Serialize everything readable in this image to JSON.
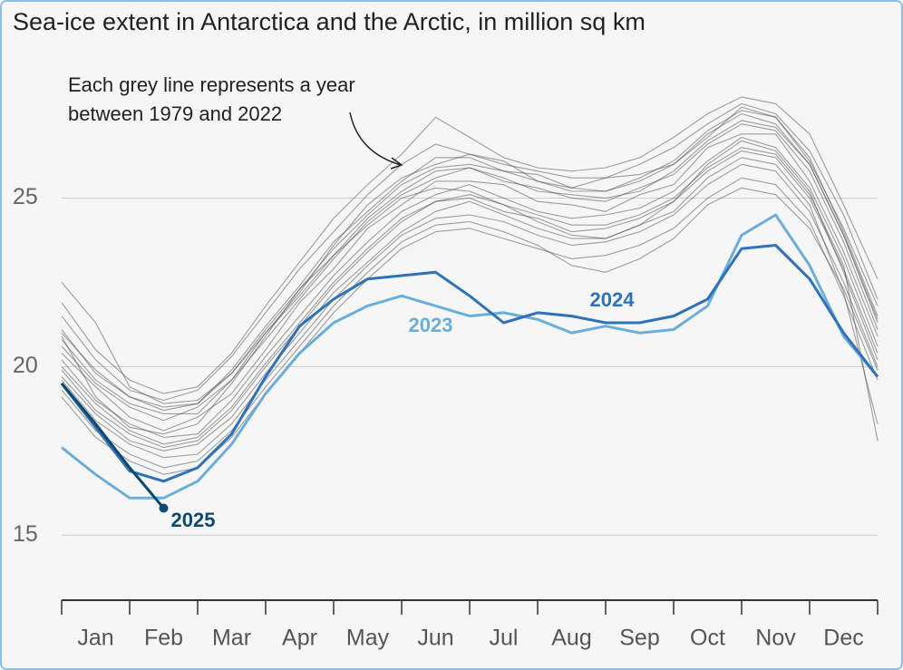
{
  "chart_data": {
    "type": "line",
    "title": "Sea-ice extent in Antarctica and the Arctic, in million sq km",
    "annotations": [
      "Each grey line represents a year",
      "between 1979 and 2022"
    ],
    "x": [
      0,
      0.5,
      1,
      1.5,
      2,
      2.5,
      3,
      3.5,
      4,
      4.5,
      5,
      5.5,
      6,
      6.5,
      7,
      7.5,
      8,
      8.5,
      9,
      9.5,
      10,
      10.5,
      11,
      11.5,
      12
    ],
    "xlim": [
      0,
      12
    ],
    "xticks": [
      {
        "value": 0.5,
        "label": "Jan"
      },
      {
        "value": 1.5,
        "label": "Feb"
      },
      {
        "value": 2.5,
        "label": "Mar"
      },
      {
        "value": 3.5,
        "label": "Apr"
      },
      {
        "value": 4.5,
        "label": "May"
      },
      {
        "value": 5.5,
        "label": "Jun"
      },
      {
        "value": 6.5,
        "label": "Jul"
      },
      {
        "value": 7.5,
        "label": "Aug"
      },
      {
        "value": 8.5,
        "label": "Sep"
      },
      {
        "value": 9.5,
        "label": "Oct"
      },
      {
        "value": 10.5,
        "label": "Nov"
      },
      {
        "value": 11.5,
        "label": "Dec"
      }
    ],
    "ylim": [
      13.07,
      29.8
    ],
    "yticks": [
      15,
      20,
      25
    ],
    "grid": true,
    "series": [
      {
        "color": "#444",
        "values": [
          21.5,
          20.2,
          19.3,
          19.0,
          19.3,
          20.3,
          21.6,
          22.9,
          24.0,
          25.1,
          26.0,
          26.6,
          26.3,
          26.0,
          25.8,
          25.6,
          25.6,
          26.0,
          26.5,
          27.2,
          27.8,
          27.5,
          26.4,
          24.5,
          22.0
        ]
      },
      {
        "color": "#444",
        "values": [
          21.0,
          19.9,
          19.1,
          18.8,
          18.9,
          19.9,
          21.2,
          22.4,
          23.7,
          24.6,
          25.5,
          26.2,
          26.2,
          25.8,
          25.7,
          25.3,
          25.2,
          25.6,
          26.1,
          27.0,
          27.6,
          27.4,
          26.2,
          24.0,
          21.5
        ]
      },
      {
        "color": "#444",
        "values": [
          20.8,
          19.6,
          18.9,
          18.6,
          18.6,
          19.6,
          21.0,
          22.1,
          23.3,
          24.4,
          25.2,
          25.8,
          25.9,
          25.6,
          25.2,
          25.1,
          25.0,
          25.2,
          25.8,
          26.7,
          27.3,
          27.1,
          26.0,
          23.9,
          21.3
        ]
      },
      {
        "color": "#444",
        "values": [
          20.4,
          19.4,
          18.5,
          18.1,
          18.5,
          19.2,
          20.5,
          21.9,
          22.9,
          24.1,
          24.8,
          25.5,
          25.5,
          25.4,
          24.9,
          24.8,
          24.6,
          25.1,
          25.4,
          26.5,
          26.9,
          26.9,
          25.5,
          23.4,
          20.9
        ]
      },
      {
        "color": "#444",
        "values": [
          20.2,
          19.0,
          18.3,
          17.9,
          18.0,
          19.0,
          20.3,
          21.5,
          22.7,
          23.7,
          24.6,
          25.1,
          25.4,
          25.0,
          24.6,
          24.4,
          24.5,
          24.7,
          25.2,
          26.1,
          26.8,
          26.5,
          25.3,
          23.2,
          20.6
        ]
      },
      {
        "color": "#444",
        "values": [
          19.9,
          18.7,
          18.0,
          17.6,
          17.8,
          18.7,
          20.0,
          21.2,
          22.4,
          23.4,
          24.3,
          24.9,
          25.0,
          24.6,
          24.4,
          24.0,
          24.1,
          24.4,
          24.9,
          25.8,
          26.4,
          26.2,
          25.0,
          22.9,
          20.4
        ]
      },
      {
        "color": "#444",
        "values": [
          19.6,
          18.4,
          17.7,
          17.3,
          17.4,
          18.3,
          19.6,
          20.8,
          22.0,
          23.0,
          23.9,
          24.4,
          24.5,
          24.3,
          23.9,
          23.6,
          23.7,
          24.0,
          24.5,
          25.4,
          26.0,
          25.8,
          24.6,
          22.5,
          20.0
        ]
      },
      {
        "color": "#444",
        "values": [
          19.1,
          17.9,
          17.2,
          16.8,
          17.0,
          17.9,
          19.2,
          20.4,
          21.6,
          22.6,
          23.5,
          24.0,
          24.1,
          23.8,
          23.5,
          23.2,
          23.3,
          23.6,
          24.1,
          25.0,
          25.6,
          25.4,
          24.3,
          22.1,
          19.6
        ]
      },
      {
        "color": "#444",
        "values": [
          21.9,
          20.5,
          19.6,
          19.2,
          19.4,
          20.4,
          21.8,
          23.1,
          24.4,
          25.4,
          26.3,
          27.4,
          26.8,
          26.2,
          25.9,
          25.8,
          25.9,
          26.2,
          26.8,
          27.5,
          28.0,
          27.8,
          26.9,
          24.8,
          22.6
        ]
      },
      {
        "color": "#444",
        "values": [
          22.5,
          21.3,
          19.4,
          18.9,
          19.0,
          19.8,
          21.0,
          22.2,
          23.6,
          24.8,
          25.6,
          26.0,
          26.3,
          26.1,
          25.5,
          25.3,
          25.6,
          25.7,
          26.0,
          26.8,
          27.7,
          27.4,
          26.1,
          24.1,
          21.8
        ]
      },
      {
        "color": "#444",
        "values": [
          20.9,
          19.1,
          18.2,
          18.0,
          18.3,
          19.5,
          20.9,
          22.3,
          23.3,
          24.2,
          25.0,
          25.3,
          25.2,
          24.8,
          24.3,
          23.9,
          23.8,
          24.2,
          24.9,
          26.0,
          26.7,
          26.4,
          25.2,
          22.8,
          20.2
        ]
      },
      {
        "color": "#444",
        "values": [
          19.7,
          18.6,
          17.8,
          17.5,
          17.7,
          18.5,
          19.8,
          21.0,
          22.2,
          23.1,
          24.0,
          24.6,
          24.9,
          24.5,
          24.1,
          23.8,
          23.8,
          24.2,
          24.6,
          25.6,
          26.2,
          26.0,
          24.8,
          22.2,
          18.3
        ]
      },
      {
        "color": "#444",
        "values": [
          20.6,
          19.5,
          18.8,
          18.4,
          18.8,
          19.6,
          20.8,
          22.0,
          23.2,
          24.3,
          25.1,
          25.6,
          25.9,
          25.5,
          25.3,
          25.0,
          24.9,
          25.3,
          25.7,
          26.6,
          27.2,
          27.0,
          25.8,
          23.7,
          21.1
        ]
      },
      {
        "color": "#444",
        "values": [
          20.0,
          18.9,
          18.1,
          17.7,
          17.9,
          18.8,
          20.1,
          21.3,
          22.5,
          23.5,
          24.4,
          24.9,
          25.1,
          24.8,
          24.5,
          24.2,
          24.2,
          24.5,
          25.0,
          25.9,
          26.5,
          26.3,
          25.1,
          23.0,
          17.8
        ]
      },
      {
        "color": "#444",
        "values": [
          21.1,
          19.8,
          19.1,
          18.7,
          18.9,
          19.8,
          21.1,
          22.3,
          23.5,
          24.5,
          25.4,
          25.9,
          26.0,
          25.8,
          25.5,
          25.2,
          25.2,
          25.5,
          26.0,
          26.9,
          27.5,
          27.2,
          26.0,
          23.9,
          21.4
        ]
      },
      {
        "color": "#444",
        "values": [
          19.3,
          18.1,
          17.4,
          17.0,
          17.2,
          18.1,
          19.4,
          20.6,
          21.8,
          22.8,
          23.7,
          24.2,
          24.3,
          24.0,
          23.6,
          23.0,
          22.8,
          23.2,
          23.8,
          24.8,
          25.3,
          25.1,
          24.1,
          22.3,
          19.9
        ]
      },
      {
        "name": "2023",
        "color": "#6aaedb",
        "values": [
          17.6,
          16.8,
          16.1,
          16.1,
          16.6,
          17.7,
          19.2,
          20.4,
          21.3,
          21.8,
          22.1,
          21.8,
          21.5,
          21.6,
          21.4,
          21.0,
          21.2,
          21.0,
          21.1,
          21.8,
          23.9,
          24.5,
          23.0,
          20.9,
          19.7
        ]
      },
      {
        "name": "2024",
        "color": "#2f72b8",
        "values": [
          19.5,
          18.2,
          16.9,
          16.6,
          17.0,
          18.0,
          19.7,
          21.2,
          22.0,
          22.6,
          22.7,
          22.8,
          22.1,
          21.3,
          21.6,
          21.5,
          21.3,
          21.3,
          21.5,
          22.0,
          23.5,
          23.6,
          22.6,
          21.0,
          19.7
        ]
      },
      {
        "name": "2025",
        "color": "#0d4a70",
        "values": [
          19.5,
          18.3,
          17.0,
          15.8,
          null,
          null,
          null,
          null,
          null,
          null,
          null,
          null,
          null,
          null,
          null,
          null,
          null,
          null,
          null,
          null,
          null,
          null,
          null,
          null,
          null
        ]
      }
    ]
  }
}
